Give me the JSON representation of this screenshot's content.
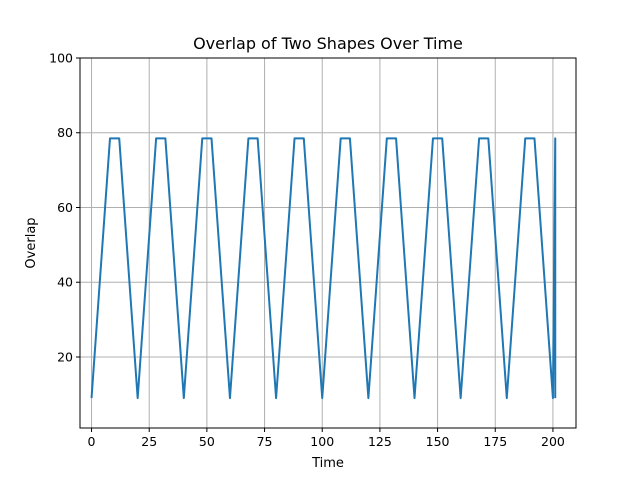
{
  "chart_data": {
    "type": "line",
    "title": "Overlap of Two Shapes Over Time",
    "xlabel": "Time",
    "ylabel": "Overlap",
    "xlim": [
      -5,
      210
    ],
    "ylim": [
      1,
      100
    ],
    "xticks": [
      0,
      25,
      50,
      75,
      100,
      125,
      150,
      175,
      200
    ],
    "yticks": [
      20,
      40,
      60,
      80,
      100
    ],
    "grid": true,
    "series": [
      {
        "name": "Overlap",
        "color": "#1f77b4",
        "period": 20,
        "x_end": 201,
        "waveform_one_cycle": {
          "x": [
            0,
            8,
            12,
            20
          ],
          "y": [
            9,
            78.5,
            78.5,
            9
          ]
        }
      }
    ]
  }
}
